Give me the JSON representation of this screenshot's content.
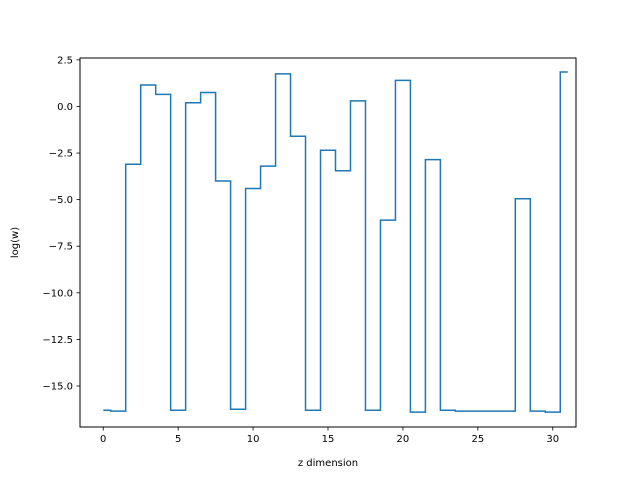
{
  "chart_data": {
    "type": "line",
    "drawstyle": "steps-mid",
    "title": "",
    "xlabel": "z dimension",
    "ylabel": "log(w)",
    "xlim": [
      -1.55,
      31.55
    ],
    "ylim": [
      -17.2,
      2.6
    ],
    "xticks": [
      0,
      5,
      10,
      15,
      20,
      25,
      30
    ],
    "xtick_labels": [
      "0",
      "5",
      "10",
      "15",
      "20",
      "25",
      "30"
    ],
    "yticks": [
      2.5,
      0.0,
      -2.5,
      -5.0,
      -7.5,
      -10.0,
      -12.5,
      -15.0
    ],
    "ytick_labels": [
      "2.5",
      "0.0",
      "−2.5",
      "−5.0",
      "−7.5",
      "−10.0",
      "−12.5",
      "−15.0"
    ],
    "grid": false,
    "legend": "none",
    "series": [
      {
        "color": "#1f77b4",
        "x": [
          0,
          1,
          2,
          3,
          4,
          5,
          6,
          7,
          8,
          9,
          10,
          11,
          12,
          13,
          14,
          15,
          16,
          17,
          18,
          19,
          20,
          21,
          22,
          23,
          24,
          25,
          26,
          27,
          28,
          29,
          30,
          31
        ],
        "y": [
          -16.3,
          -16.35,
          -3.1,
          1.15,
          0.65,
          -16.3,
          0.2,
          0.75,
          -4.0,
          -16.25,
          -4.4,
          -3.2,
          1.75,
          -1.6,
          -16.3,
          -2.35,
          -3.45,
          0.3,
          -16.3,
          -6.1,
          1.4,
          -16.4,
          -2.85,
          -16.3,
          -16.35,
          -16.35,
          -16.35,
          -16.35,
          -4.95,
          -16.35,
          -16.4,
          1.85
        ]
      }
    ]
  }
}
